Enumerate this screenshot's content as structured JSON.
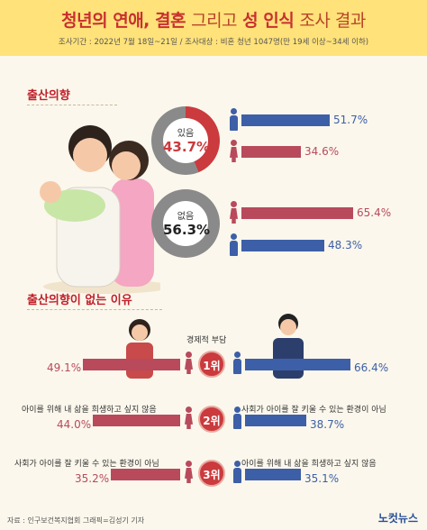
{
  "header": {
    "title_bold": "청년의 연애, 결혼",
    "title_light_1": "그리고",
    "title_bold_2": "성 인식",
    "title_light_2": "조사 결과",
    "subtitle": "조사기간 : 2022년 7월 18일~21일 / 조사대상 : 비혼 청년 1047명(만 19세 이상~34세 이하)"
  },
  "section1": {
    "title": "출산의향",
    "yes": {
      "label": "있음",
      "value": "43.7%",
      "fraction": 0.437,
      "male_value": "51.7%",
      "male_fraction": 0.517,
      "female_value": "34.6%",
      "female_fraction": 0.346
    },
    "no": {
      "label": "없음",
      "value": "56.3%",
      "fraction": 0.563,
      "female_value": "65.4%",
      "female_fraction": 0.654,
      "male_value": "48.3%",
      "male_fraction": 0.483
    }
  },
  "section2": {
    "title": "출산의향이 없는 이유",
    "reasons": [
      {
        "rank": "1위",
        "female_reason": "경제적 부담",
        "male_reason": "",
        "female_value": "49.1%",
        "female_fraction": 0.491,
        "male_value": "66.4%",
        "male_fraction": 0.664
      },
      {
        "rank": "2위",
        "female_reason": "아이를 위해 내 삶을 희생하고 싶지 않음",
        "male_reason": "사회가 아이를 잘 키울 수 있는 환경이 아님",
        "female_value": "44.0%",
        "female_fraction": 0.44,
        "male_value": "38.7%",
        "male_fraction": 0.387
      },
      {
        "rank": "3위",
        "female_reason": "사회가 아이를 잘 키울 수 있는 환경이 아님",
        "male_reason": "아이를 위해 내 삶을 희생하고 싶지 않음",
        "female_value": "35.2%",
        "female_fraction": 0.352,
        "male_value": "35.1%",
        "male_fraction": 0.351
      }
    ]
  },
  "footer": {
    "source": "자료 : 인구보건복지협회    그래픽=김성기 기자",
    "logo": "노컷뉴스"
  },
  "colors": {
    "male": "#3d5fa7",
    "female": "#b84a5c",
    "accent": "#cb3a3d",
    "grey": "#8a8a8a"
  }
}
